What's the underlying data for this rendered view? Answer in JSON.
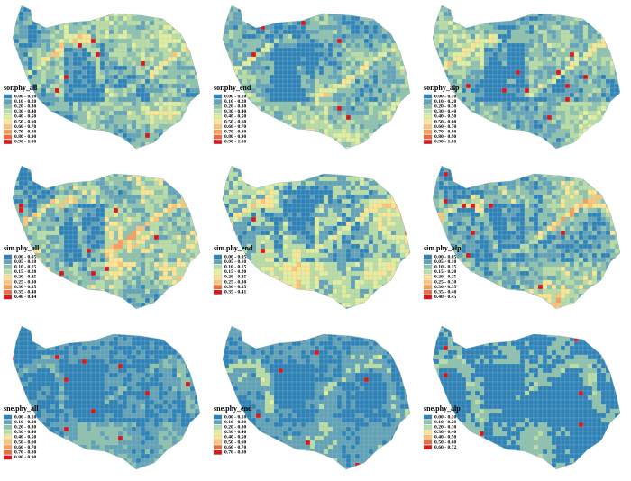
{
  "colors": [
    "#2b83ba",
    "#5fa3b8",
    "#8cc2ae",
    "#b7dea6",
    "#e0f0a0",
    "#fee690",
    "#fdc475",
    "#f99e59",
    "#ec6b3f",
    "#d7191c"
  ],
  "panels": [
    {
      "title": "sor.phy_all",
      "legend": [
        "0.00 - 0.10",
        "0.10 - 0.20",
        "0.20 - 0.30",
        "0.30 - 0.40",
        "0.40 - 0.50",
        "0.50 - 0.60",
        "0.60 - 0.70",
        "0.70 - 0.80",
        "0.80 - 0.90",
        "0.90 - 1.00"
      ]
    },
    {
      "title": "sor.phy_end",
      "legend": [
        "0.00 - 0.10",
        "0.10 - 0.20",
        "0.20 - 0.30",
        "0.30 - 0.40",
        "0.40 - 0.50",
        "0.50 - 0.60",
        "0.60 - 0.70",
        "0.70 - 0.80",
        "0.80 - 0.90",
        "0.90 - 1.00"
      ]
    },
    {
      "title": "sor.phy_alp",
      "legend": [
        "0.00 - 0.10",
        "0.10 - 0.20",
        "0.20 - 0.30",
        "0.30 - 0.40",
        "0.40 - 0.50",
        "0.50 - 0.60",
        "0.60 - 0.70",
        "0.70 - 0.80",
        "0.80 - 0.90",
        "0.90 - 1.00"
      ]
    },
    {
      "title": "sim.phy_all",
      "legend": [
        "0.00 - 0.05",
        "0.05 - 0.10",
        "0.10 - 0.15",
        "0.15 - 0.20",
        "0.20 - 0.25",
        "0.25 - 0.30",
        "0.30 - 0.35",
        "0.35 - 0.40",
        "0.40 - 0.44"
      ]
    },
    {
      "title": "sim.phy_end",
      "legend": [
        "0.00 - 0.05",
        "0.05 - 0.10",
        "0.10 - 0.15",
        "0.15 - 0.20",
        "0.20 - 0.25",
        "0.25 - 0.30",
        "0.30 - 0.35",
        "0.35 - 0.41"
      ]
    },
    {
      "title": "sim.phy_alp",
      "legend": [
        "0.00 - 0.05",
        "0.05 - 0.10",
        "0.10 - 0.15",
        "0.15 - 0.20",
        "0.20 - 0.25",
        "0.25 - 0.30",
        "0.30 - 0.35",
        "0.35 - 0.40",
        "0.40 - 0.45"
      ]
    },
    {
      "title": "sne.phy_all",
      "legend": [
        "0.00 - 0.10",
        "0.10 - 0.20",
        "0.20 - 0.30",
        "0.30 - 0.40",
        "0.40 - 0.50",
        "0.50 - 0.60",
        "0.60 - 0.70",
        "0.70 - 0.80",
        "0.80 - 0.90"
      ]
    },
    {
      "title": "sne.phy_end",
      "legend": [
        "0.00 - 0.10",
        "0.10 - 0.20",
        "0.20 - 0.30",
        "0.30 - 0.40",
        "0.40 - 0.50",
        "0.50 - 0.60",
        "0.60 - 0.70",
        "0.70 - 0.80"
      ]
    },
    {
      "title": "sne.phy_alp",
      "legend": [
        "0.00 - 0.10",
        "0.10 - 0.20",
        "0.20 - 0.30",
        "0.30 - 0.40",
        "0.40 - 0.50",
        "0.50 - 0.60",
        "0.60 - 0.72"
      ]
    }
  ]
}
